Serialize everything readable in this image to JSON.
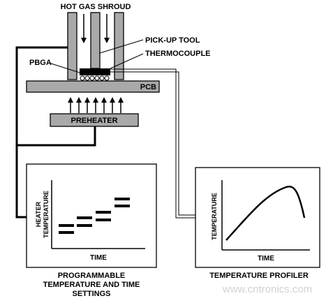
{
  "labels": {
    "hot_gas_shroud": "HOT GAS SHROUD",
    "pick_up_tool": "PICK-UP TOOL",
    "thermocouple": "THERMOCOUPLE",
    "pbga": "PBGA",
    "pcb": "PCB",
    "preheater": "PREHEATER",
    "heater_temperature_line1": "HEATER",
    "heater_temperature_line2": "TEMPERATURE",
    "time_left": "TIME",
    "temperature_right": "TEMPERATURE",
    "time_right": "TIME",
    "programmable_line1": "PROGRAMMABLE",
    "programmable_line2": "TEMPERATURE AND TIME",
    "programmable_line3": "SETTINGS",
    "temperature_profiler": "TEMPERATURE PROFILER",
    "watermark": "www.cntronics.com"
  },
  "icons": [
    "down-arrow-icon",
    "up-arrow-icon",
    "solder-ball-icon"
  ]
}
